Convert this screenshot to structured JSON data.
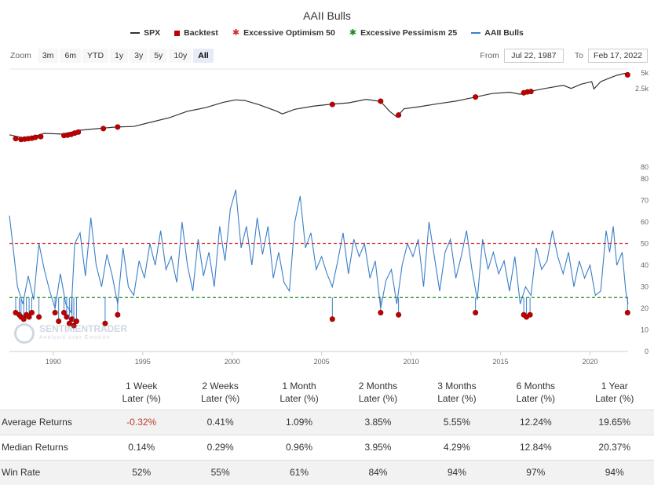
{
  "chart_data": {
    "type": "line",
    "title": "AAII Bulls",
    "legend": {
      "placement": "top-center",
      "items": [
        {
          "name": "SPX",
          "color": "#333333",
          "marker": "line"
        },
        {
          "name": "Backtest",
          "color": "#c00000",
          "marker": "square"
        },
        {
          "name": "Excessive Optimism 50",
          "color": "#d62728",
          "marker": "star"
        },
        {
          "name": "Excessive Pessimism 25",
          "color": "#1a8a1a",
          "marker": "star"
        },
        {
          "name": "AAII Bulls",
          "color": "#3a7fc8",
          "marker": "line"
        }
      ]
    },
    "x_ticks": [
      "1990",
      "1995",
      "2000",
      "2005",
      "2010",
      "2015",
      "2020"
    ],
    "x_range": [
      1987.55,
      2022.13
    ],
    "top_panel": {
      "series": "SPX",
      "y_ticks": [
        "5k",
        "2.5k",
        "80"
      ],
      "points": [
        [
          1987.55,
          320
        ],
        [
          1988.5,
          270
        ],
        [
          1989.5,
          340
        ],
        [
          1990.5,
          330
        ],
        [
          1991.5,
          390
        ],
        [
          1992.5,
          420
        ],
        [
          1993.5,
          450
        ],
        [
          1994.5,
          460
        ],
        [
          1995.5,
          560
        ],
        [
          1996.5,
          680
        ],
        [
          1997.5,
          900
        ],
        [
          1998.5,
          1050
        ],
        [
          1999.5,
          1330
        ],
        [
          2000.2,
          1480
        ],
        [
          2000.7,
          1440
        ],
        [
          2001.5,
          1200
        ],
        [
          2002.5,
          900
        ],
        [
          2002.8,
          800
        ],
        [
          2003.5,
          980
        ],
        [
          2004.5,
          1120
        ],
        [
          2005.5,
          1220
        ],
        [
          2006.5,
          1300
        ],
        [
          2007.5,
          1520
        ],
        [
          2008.3,
          1380
        ],
        [
          2008.8,
          900
        ],
        [
          2009.2,
          700
        ],
        [
          2009.6,
          1000
        ],
        [
          2010.5,
          1100
        ],
        [
          2011.5,
          1250
        ],
        [
          2012.5,
          1400
        ],
        [
          2013.5,
          1650
        ],
        [
          2014.5,
          1950
        ],
        [
          2015.5,
          2080
        ],
        [
          2016.1,
          1900
        ],
        [
          2016.7,
          2170
        ],
        [
          2017.5,
          2450
        ],
        [
          2018.5,
          2800
        ],
        [
          2018.95,
          2450
        ],
        [
          2019.5,
          2950
        ],
        [
          2020.1,
          3300
        ],
        [
          2020.22,
          2400
        ],
        [
          2020.6,
          3300
        ],
        [
          2021.0,
          3750
        ],
        [
          2021.5,
          4350
        ],
        [
          2021.95,
          4750
        ],
        [
          2022.13,
          4400
        ]
      ],
      "backtest_points": [
        [
          1987.9,
          270
        ],
        [
          1988.2,
          260
        ],
        [
          1988.4,
          265
        ],
        [
          1988.6,
          270
        ],
        [
          1988.8,
          275
        ],
        [
          1989.0,
          285
        ],
        [
          1989.3,
          295
        ],
        [
          1990.6,
          310
        ],
        [
          1990.8,
          315
        ],
        [
          1991.0,
          325
        ],
        [
          1991.2,
          345
        ],
        [
          1991.4,
          360
        ],
        [
          1992.8,
          420
        ],
        [
          1993.6,
          450
        ],
        [
          2005.6,
          1210
        ],
        [
          2008.3,
          1400
        ],
        [
          2009.3,
          760
        ],
        [
          2013.6,
          1680
        ],
        [
          2016.3,
          2020
        ],
        [
          2016.5,
          2100
        ],
        [
          2016.7,
          2140
        ],
        [
          2022.1,
          4450
        ]
      ]
    },
    "bottom_panel": {
      "series": "AAII Bulls",
      "y_ticks": [
        0,
        10,
        20,
        30,
        40,
        50,
        60,
        70,
        80
      ],
      "ylim": [
        0,
        80
      ],
      "excessive_optimism": 50,
      "excessive_pessimism": 25,
      "points": [
        [
          1987.55,
          63
        ],
        [
          1987.8,
          45
        ],
        [
          1988.0,
          30
        ],
        [
          1988.3,
          22
        ],
        [
          1988.6,
          35
        ],
        [
          1988.9,
          24
        ],
        [
          1989.2,
          50
        ],
        [
          1989.5,
          38
        ],
        [
          1989.8,
          28
        ],
        [
          1990.1,
          20
        ],
        [
          1990.4,
          36
        ],
        [
          1990.7,
          22
        ],
        [
          1991.0,
          18
        ],
        [
          1991.2,
          50
        ],
        [
          1991.5,
          55
        ],
        [
          1991.8,
          35
        ],
        [
          1992.1,
          62
        ],
        [
          1992.4,
          40
        ],
        [
          1992.7,
          30
        ],
        [
          1993.0,
          45
        ],
        [
          1993.3,
          35
        ],
        [
          1993.6,
          22
        ],
        [
          1993.9,
          48
        ],
        [
          1994.2,
          30
        ],
        [
          1994.5,
          26
        ],
        [
          1994.8,
          42
        ],
        [
          1995.1,
          34
        ],
        [
          1995.4,
          50
        ],
        [
          1995.7,
          40
        ],
        [
          1996.0,
          56
        ],
        [
          1996.3,
          38
        ],
        [
          1996.6,
          44
        ],
        [
          1996.9,
          32
        ],
        [
          1997.2,
          60
        ],
        [
          1997.5,
          40
        ],
        [
          1997.8,
          28
        ],
        [
          1998.1,
          52
        ],
        [
          1998.4,
          35
        ],
        [
          1998.7,
          46
        ],
        [
          1999.0,
          30
        ],
        [
          1999.3,
          58
        ],
        [
          1999.6,
          42
        ],
        [
          1999.9,
          66
        ],
        [
          2000.2,
          75
        ],
        [
          2000.5,
          48
        ],
        [
          2000.8,
          58
        ],
        [
          2001.1,
          40
        ],
        [
          2001.4,
          62
        ],
        [
          2001.7,
          45
        ],
        [
          2002.0,
          58
        ],
        [
          2002.3,
          34
        ],
        [
          2002.6,
          46
        ],
        [
          2002.9,
          32
        ],
        [
          2003.2,
          28
        ],
        [
          2003.5,
          60
        ],
        [
          2003.8,
          72
        ],
        [
          2004.1,
          48
        ],
        [
          2004.4,
          55
        ],
        [
          2004.7,
          38
        ],
        [
          2005.0,
          44
        ],
        [
          2005.3,
          36
        ],
        [
          2005.6,
          30
        ],
        [
          2005.9,
          42
        ],
        [
          2006.2,
          55
        ],
        [
          2006.5,
          36
        ],
        [
          2006.8,
          52
        ],
        [
          2007.1,
          44
        ],
        [
          2007.4,
          50
        ],
        [
          2007.7,
          34
        ],
        [
          2008.0,
          42
        ],
        [
          2008.3,
          20
        ],
        [
          2008.6,
          33
        ],
        [
          2008.9,
          38
        ],
        [
          2009.2,
          22
        ],
        [
          2009.5,
          40
        ],
        [
          2009.8,
          50
        ],
        [
          2010.1,
          44
        ],
        [
          2010.4,
          52
        ],
        [
          2010.7,
          30
        ],
        [
          2011.0,
          60
        ],
        [
          2011.3,
          44
        ],
        [
          2011.6,
          28
        ],
        [
          2011.9,
          46
        ],
        [
          2012.2,
          52
        ],
        [
          2012.5,
          34
        ],
        [
          2012.8,
          44
        ],
        [
          2013.1,
          56
        ],
        [
          2013.4,
          38
        ],
        [
          2013.7,
          24
        ],
        [
          2014.0,
          52
        ],
        [
          2014.3,
          38
        ],
        [
          2014.6,
          46
        ],
        [
          2014.9,
          36
        ],
        [
          2015.2,
          42
        ],
        [
          2015.5,
          28
        ],
        [
          2015.8,
          44
        ],
        [
          2016.1,
          22
        ],
        [
          2016.4,
          30
        ],
        [
          2016.7,
          26
        ],
        [
          2017.0,
          48
        ],
        [
          2017.3,
          38
        ],
        [
          2017.6,
          42
        ],
        [
          2017.9,
          56
        ],
        [
          2018.2,
          44
        ],
        [
          2018.5,
          36
        ],
        [
          2018.8,
          46
        ],
        [
          2019.1,
          30
        ],
        [
          2019.4,
          42
        ],
        [
          2019.7,
          34
        ],
        [
          2020.0,
          40
        ],
        [
          2020.3,
          26
        ],
        [
          2020.6,
          28
        ],
        [
          2020.9,
          56
        ],
        [
          2021.1,
          46
        ],
        [
          2021.3,
          58
        ],
        [
          2021.5,
          40
        ],
        [
          2021.8,
          46
        ],
        [
          2022.0,
          28
        ],
        [
          2022.13,
          22
        ]
      ],
      "backtest_points": [
        [
          1987.9,
          18
        ],
        [
          1988.1,
          17
        ],
        [
          1988.2,
          16
        ],
        [
          1988.35,
          15
        ],
        [
          1988.5,
          17
        ],
        [
          1988.65,
          16
        ],
        [
          1988.8,
          18
        ],
        [
          1989.2,
          16
        ],
        [
          1990.1,
          18
        ],
        [
          1990.3,
          14
        ],
        [
          1990.6,
          18
        ],
        [
          1990.75,
          16
        ],
        [
          1990.9,
          13
        ],
        [
          1991.05,
          15
        ],
        [
          1991.15,
          12
        ],
        [
          1991.3,
          14
        ],
        [
          1992.9,
          13
        ],
        [
          1993.6,
          17
        ],
        [
          2005.6,
          15
        ],
        [
          2008.3,
          18
        ],
        [
          2009.3,
          17
        ],
        [
          2013.6,
          18
        ],
        [
          2016.3,
          17
        ],
        [
          2016.45,
          16
        ],
        [
          2016.65,
          17
        ],
        [
          2022.1,
          18
        ]
      ]
    }
  },
  "toolbar": {
    "zoom_label": "Zoom",
    "zoom_buttons": [
      "3m",
      "6m",
      "YTD",
      "1y",
      "3y",
      "5y",
      "10y",
      "All"
    ],
    "active_zoom": "All",
    "from_label": "From",
    "from_value": "Jul 22, 1987",
    "to_label": "To",
    "to_value": "Feb 17, 2022"
  },
  "watermark": {
    "name": "SENTIMENTRADER",
    "tagline": "Analysis over Emotion"
  },
  "stats_table": {
    "headers": [
      {
        "line1": "1 Week",
        "line2": "Later (%)"
      },
      {
        "line1": "2 Weeks",
        "line2": "Later (%)"
      },
      {
        "line1": "1 Month",
        "line2": "Later (%)"
      },
      {
        "line1": "2 Months",
        "line2": "Later (%)"
      },
      {
        "line1": "3 Months",
        "line2": "Later (%)"
      },
      {
        "line1": "6 Months",
        "line2": "Later (%)"
      },
      {
        "line1": "1 Year",
        "line2": "Later (%)"
      }
    ],
    "rows": [
      {
        "label": "Average Returns",
        "values": [
          "-0.32%",
          "0.41%",
          "1.09%",
          "3.85%",
          "5.55%",
          "12.24%",
          "19.65%"
        ]
      },
      {
        "label": "Median Returns",
        "values": [
          "0.14%",
          "0.29%",
          "0.96%",
          "3.95%",
          "4.29%",
          "12.84%",
          "20.37%"
        ]
      },
      {
        "label": "Win Rate",
        "values": [
          "52%",
          "55%",
          "61%",
          "84%",
          "94%",
          "97%",
          "94%"
        ]
      }
    ]
  }
}
